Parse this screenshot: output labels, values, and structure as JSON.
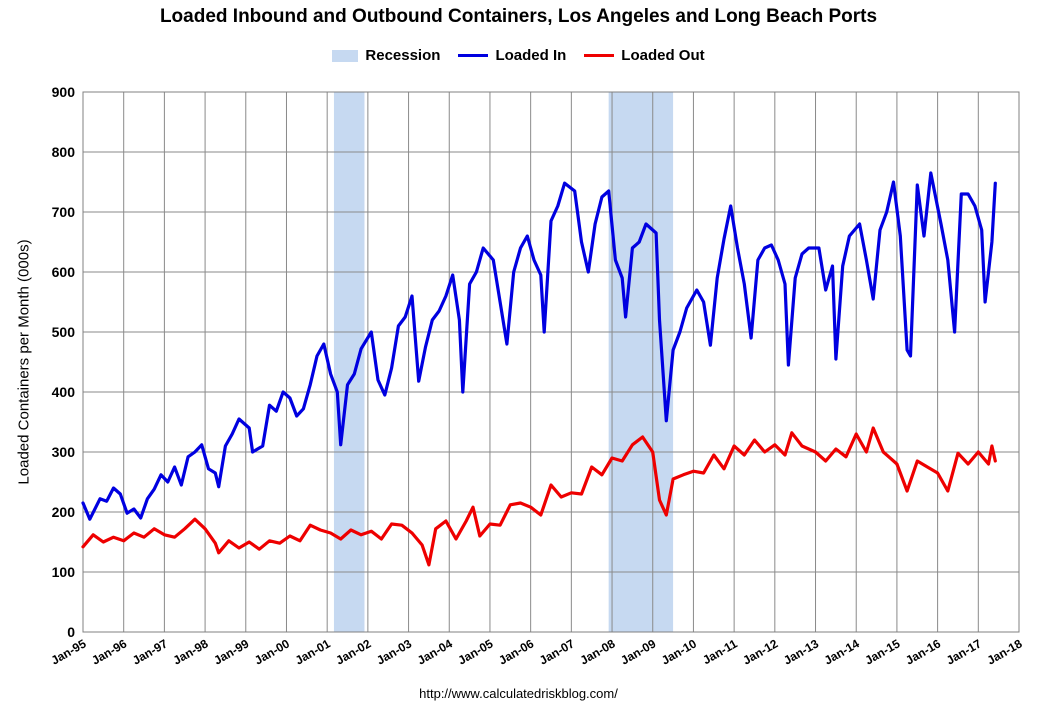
{
  "chart_data": {
    "type": "line",
    "title": "Loaded Inbound and Outbound Containers, Los Angeles and Long Beach Ports",
    "ylabel": "Loaded Containers per Month (000s)",
    "xlabel": "",
    "ylim": [
      0,
      900
    ],
    "yticks": [
      "0",
      "100",
      "200",
      "300",
      "400",
      "500",
      "600",
      "700",
      "800",
      "900"
    ],
    "xticks": [
      "Jan-95",
      "Jan-96",
      "Jan-97",
      "Jan-98",
      "Jan-99",
      "Jan-00",
      "Jan-01",
      "Jan-02",
      "Jan-03",
      "Jan-04",
      "Jan-05",
      "Jan-06",
      "Jan-07",
      "Jan-08",
      "Jan-09",
      "Jan-10",
      "Jan-11",
      "Jan-12",
      "Jan-13",
      "Jan-14",
      "Jan-15",
      "Jan-16",
      "Jan-17",
      "Jan-18"
    ],
    "x_range": [
      "1995-01",
      "2018-01"
    ],
    "grid": true,
    "legend_position": "top",
    "recessions": [
      {
        "start": "2001-03",
        "end": "2001-11"
      },
      {
        "start": "2007-12",
        "end": "2009-06"
      }
    ],
    "legend": {
      "recession": "Recession",
      "recession_color": "#c6d9f1"
    },
    "series": [
      {
        "name": "Loaded In",
        "color": "#0000e0",
        "points": [
          [
            "1995-01",
            215
          ],
          [
            "1995-03",
            188
          ],
          [
            "1995-06",
            222
          ],
          [
            "1995-08",
            218
          ],
          [
            "1995-10",
            240
          ],
          [
            "1995-12",
            230
          ],
          [
            "1996-02",
            198
          ],
          [
            "1996-04",
            205
          ],
          [
            "1996-06",
            190
          ],
          [
            "1996-08",
            222
          ],
          [
            "1996-10",
            238
          ],
          [
            "1996-12",
            262
          ],
          [
            "1997-02",
            250
          ],
          [
            "1997-04",
            275
          ],
          [
            "1997-06",
            245
          ],
          [
            "1997-08",
            292
          ],
          [
            "1997-10",
            300
          ],
          [
            "1997-12",
            312
          ],
          [
            "1998-02",
            272
          ],
          [
            "1998-04",
            265
          ],
          [
            "1998-05",
            242
          ],
          [
            "1998-07",
            310
          ],
          [
            "1998-09",
            330
          ],
          [
            "1998-11",
            355
          ],
          [
            "1999-02",
            340
          ],
          [
            "1999-03",
            300
          ],
          [
            "1999-06",
            310
          ],
          [
            "1999-08",
            378
          ],
          [
            "1999-10",
            368
          ],
          [
            "1999-12",
            400
          ],
          [
            "2000-02",
            390
          ],
          [
            "2000-04",
            360
          ],
          [
            "2000-06",
            372
          ],
          [
            "2000-08",
            412
          ],
          [
            "2000-10",
            460
          ],
          [
            "2000-12",
            480
          ],
          [
            "2001-02",
            430
          ],
          [
            "2001-04",
            400
          ],
          [
            "2001-05",
            312
          ],
          [
            "2001-07",
            412
          ],
          [
            "2001-09",
            430
          ],
          [
            "2001-11",
            472
          ],
          [
            "2002-02",
            500
          ],
          [
            "2002-04",
            420
          ],
          [
            "2002-06",
            395
          ],
          [
            "2002-08",
            440
          ],
          [
            "2002-10",
            510
          ],
          [
            "2002-12",
            525
          ],
          [
            "2003-02",
            560
          ],
          [
            "2003-04",
            418
          ],
          [
            "2003-06",
            475
          ],
          [
            "2003-08",
            520
          ],
          [
            "2003-10",
            535
          ],
          [
            "2003-12",
            560
          ],
          [
            "2004-02",
            595
          ],
          [
            "2004-04",
            520
          ],
          [
            "2004-05",
            400
          ],
          [
            "2004-07",
            580
          ],
          [
            "2004-09",
            600
          ],
          [
            "2004-11",
            640
          ],
          [
            "2005-02",
            620
          ],
          [
            "2005-04",
            550
          ],
          [
            "2005-06",
            480
          ],
          [
            "2005-08",
            600
          ],
          [
            "2005-10",
            640
          ],
          [
            "2005-12",
            660
          ],
          [
            "2006-02",
            620
          ],
          [
            "2006-04",
            595
          ],
          [
            "2006-05",
            500
          ],
          [
            "2006-07",
            685
          ],
          [
            "2006-09",
            710
          ],
          [
            "2006-11",
            748
          ],
          [
            "2007-02",
            735
          ],
          [
            "2007-04",
            650
          ],
          [
            "2007-06",
            600
          ],
          [
            "2007-08",
            680
          ],
          [
            "2007-10",
            725
          ],
          [
            "2007-12",
            735
          ],
          [
            "2008-02",
            620
          ],
          [
            "2008-04",
            590
          ],
          [
            "2008-05",
            525
          ],
          [
            "2008-07",
            640
          ],
          [
            "2008-09",
            650
          ],
          [
            "2008-11",
            680
          ],
          [
            "2009-02",
            665
          ],
          [
            "2009-03",
            520
          ],
          [
            "2009-05",
            352
          ],
          [
            "2009-07",
            470
          ],
          [
            "2009-09",
            500
          ],
          [
            "2009-11",
            540
          ],
          [
            "2010-02",
            570
          ],
          [
            "2010-04",
            550
          ],
          [
            "2010-06",
            478
          ],
          [
            "2010-08",
            590
          ],
          [
            "2010-10",
            655
          ],
          [
            "2010-12",
            710
          ],
          [
            "2011-02",
            640
          ],
          [
            "2011-04",
            580
          ],
          [
            "2011-06",
            490
          ],
          [
            "2011-08",
            620
          ],
          [
            "2011-10",
            640
          ],
          [
            "2011-12",
            645
          ],
          [
            "2012-02",
            620
          ],
          [
            "2012-04",
            580
          ],
          [
            "2012-05",
            445
          ],
          [
            "2012-07",
            590
          ],
          [
            "2012-09",
            630
          ],
          [
            "2012-11",
            640
          ],
          [
            "2013-02",
            640
          ],
          [
            "2013-04",
            570
          ],
          [
            "2013-06",
            610
          ],
          [
            "2013-07",
            455
          ],
          [
            "2013-09",
            610
          ],
          [
            "2013-11",
            660
          ],
          [
            "2014-02",
            680
          ],
          [
            "2014-04",
            620
          ],
          [
            "2014-06",
            555
          ],
          [
            "2014-08",
            670
          ],
          [
            "2014-10",
            700
          ],
          [
            "2014-12",
            750
          ],
          [
            "2015-02",
            660
          ],
          [
            "2015-04",
            470
          ],
          [
            "2015-05",
            460
          ],
          [
            "2015-07",
            745
          ],
          [
            "2015-09",
            660
          ],
          [
            "2015-11",
            765
          ],
          [
            "2016-02",
            680
          ],
          [
            "2016-04",
            620
          ],
          [
            "2016-06",
            500
          ],
          [
            "2016-08",
            730
          ],
          [
            "2016-10",
            730
          ],
          [
            "2016-12",
            710
          ],
          [
            "2017-02",
            670
          ],
          [
            "2017-03",
            550
          ],
          [
            "2017-05",
            650
          ],
          [
            "2017-06",
            748
          ]
        ]
      },
      {
        "name": "Loaded Out",
        "color": "#ee0000",
        "points": [
          [
            "1995-01",
            142
          ],
          [
            "1995-04",
            162
          ],
          [
            "1995-07",
            150
          ],
          [
            "1995-10",
            158
          ],
          [
            "1996-01",
            152
          ],
          [
            "1996-04",
            165
          ],
          [
            "1996-07",
            158
          ],
          [
            "1996-10",
            172
          ],
          [
            "1997-01",
            162
          ],
          [
            "1997-04",
            158
          ],
          [
            "1997-07",
            172
          ],
          [
            "1997-10",
            188
          ],
          [
            "1998-01",
            172
          ],
          [
            "1998-04",
            148
          ],
          [
            "1998-05",
            132
          ],
          [
            "1998-08",
            152
          ],
          [
            "1998-11",
            140
          ],
          [
            "1999-02",
            150
          ],
          [
            "1999-05",
            138
          ],
          [
            "1999-08",
            152
          ],
          [
            "1999-11",
            148
          ],
          [
            "2000-02",
            160
          ],
          [
            "2000-05",
            152
          ],
          [
            "2000-08",
            178
          ],
          [
            "2000-11",
            170
          ],
          [
            "2001-02",
            165
          ],
          [
            "2001-05",
            155
          ],
          [
            "2001-08",
            170
          ],
          [
            "2001-11",
            162
          ],
          [
            "2002-02",
            168
          ],
          [
            "2002-05",
            155
          ],
          [
            "2002-08",
            180
          ],
          [
            "2002-11",
            178
          ],
          [
            "2003-02",
            165
          ],
          [
            "2003-05",
            145
          ],
          [
            "2003-07",
            112
          ],
          [
            "2003-09",
            172
          ],
          [
            "2003-12",
            185
          ],
          [
            "2004-03",
            155
          ],
          [
            "2004-06",
            185
          ],
          [
            "2004-08",
            208
          ],
          [
            "2004-10",
            160
          ],
          [
            "2005-01",
            180
          ],
          [
            "2005-04",
            178
          ],
          [
            "2005-07",
            212
          ],
          [
            "2005-10",
            215
          ],
          [
            "2006-01",
            208
          ],
          [
            "2006-04",
            195
          ],
          [
            "2006-07",
            245
          ],
          [
            "2006-10",
            225
          ],
          [
            "2007-01",
            232
          ],
          [
            "2007-04",
            230
          ],
          [
            "2007-07",
            275
          ],
          [
            "2007-10",
            262
          ],
          [
            "2008-01",
            290
          ],
          [
            "2008-04",
            285
          ],
          [
            "2008-07",
            312
          ],
          [
            "2008-10",
            325
          ],
          [
            "2009-01",
            300
          ],
          [
            "2009-03",
            220
          ],
          [
            "2009-05",
            195
          ],
          [
            "2009-07",
            255
          ],
          [
            "2009-10",
            262
          ],
          [
            "2010-01",
            268
          ],
          [
            "2010-04",
            265
          ],
          [
            "2010-07",
            295
          ],
          [
            "2010-10",
            272
          ],
          [
            "2011-01",
            310
          ],
          [
            "2011-04",
            295
          ],
          [
            "2011-07",
            320
          ],
          [
            "2011-10",
            300
          ],
          [
            "2012-01",
            312
          ],
          [
            "2012-04",
            295
          ],
          [
            "2012-06",
            332
          ],
          [
            "2012-09",
            310
          ],
          [
            "2013-01",
            300
          ],
          [
            "2013-04",
            285
          ],
          [
            "2013-07",
            305
          ],
          [
            "2013-10",
            292
          ],
          [
            "2014-01",
            330
          ],
          [
            "2014-04",
            300
          ],
          [
            "2014-06",
            340
          ],
          [
            "2014-09",
            300
          ],
          [
            "2015-01",
            280
          ],
          [
            "2015-04",
            235
          ],
          [
            "2015-07",
            285
          ],
          [
            "2015-10",
            275
          ],
          [
            "2016-01",
            265
          ],
          [
            "2016-04",
            235
          ],
          [
            "2016-07",
            298
          ],
          [
            "2016-10",
            280
          ],
          [
            "2017-01",
            300
          ],
          [
            "2017-04",
            280
          ],
          [
            "2017-05",
            310
          ],
          [
            "2017-06",
            285
          ]
        ]
      }
    ]
  },
  "footer": {
    "source_url": "http://www.calculatedriskblog.com/"
  }
}
